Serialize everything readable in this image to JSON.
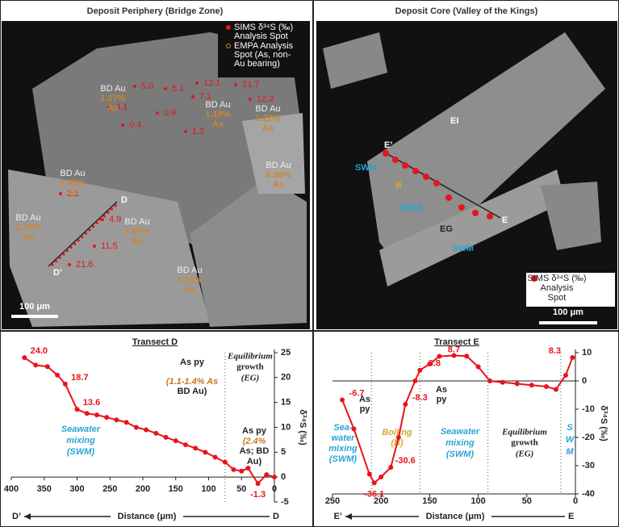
{
  "panels": [
    {
      "title": "Deposit Periphery (Bridge Zone)",
      "legend": [
        "SIMS δ³⁴S (‰)",
        "Analysis Spot",
        "EMPA Analysis",
        "Spot (As, non-",
        "Au bearing)"
      ],
      "sims_labels": [
        "5.0",
        "5.1",
        "12.1",
        "21.7",
        "4.1",
        "7.1",
        "0.9",
        "12.2",
        "0.4",
        "1.2",
        "2.1",
        "4.9",
        "11.5",
        "21.6"
      ],
      "empa_labels": [
        [
          "BD Au",
          "1.27%",
          "As"
        ],
        [
          "BD Au",
          "1.19%",
          "As"
        ],
        [
          "BD Au",
          "1.22%",
          "As"
        ],
        [
          "BD Au",
          "0.26%",
          "As"
        ],
        [
          "BD Au",
          "2.42%",
          "As"
        ],
        [
          "BD Au",
          "1.37%",
          "As"
        ],
        [
          "BD Au",
          "1.07%",
          "As"
        ],
        [
          "BD Au",
          "1.21%",
          "As"
        ]
      ],
      "markers": [
        "D",
        "D’"
      ],
      "scale": "100 μm"
    },
    {
      "title": "Deposit Core (Valley of the Kings)",
      "labels": [
        "EI",
        "E’",
        "E",
        "SWM",
        "B",
        "SWM",
        "EG",
        "SWM"
      ],
      "legend": [
        "SIMS δ³⁴S (‰)",
        "Analysis",
        "Spot"
      ],
      "scale": "100 μm"
    }
  ],
  "chart_data": [
    {
      "type": "line",
      "title": "Transect D",
      "x_label": "Distance (μm)",
      "y_label": "δ³⁴S (‰)",
      "start_label": "D’",
      "end_label": "D",
      "x": [
        380,
        363,
        345,
        330,
        318,
        300,
        285,
        270,
        255,
        240,
        225,
        210,
        195,
        180,
        165,
        150,
        135,
        120,
        105,
        90,
        75,
        62,
        50,
        40,
        25,
        12,
        0
      ],
      "series": [
        {
          "name": "δ³⁴S",
          "color": "#e8141c",
          "values": [
            24.0,
            22.5,
            22.2,
            20.5,
            18.7,
            13.6,
            12.8,
            12.5,
            12.0,
            11.5,
            11.0,
            10.0,
            9.5,
            8.8,
            8.0,
            7.3,
            6.5,
            5.8,
            5.0,
            4.0,
            3.0,
            1.5,
            1.2,
            1.8,
            -1.3,
            0.5,
            0
          ],
          "value_labels": [
            "24.0",
            null,
            null,
            null,
            "18.7",
            "13.6",
            null,
            null,
            null,
            null,
            null,
            null,
            null,
            null,
            null,
            null,
            null,
            null,
            null,
            null,
            null,
            null,
            null,
            null,
            "-1.3",
            null,
            null
          ]
        }
      ],
      "xlim": [
        400,
        0
      ],
      "xticks": [
        400,
        350,
        300,
        250,
        200,
        150,
        100,
        50,
        0
      ],
      "ylim": [
        -5,
        25
      ],
      "yticks": [
        25,
        20,
        15,
        10,
        5,
        0,
        -5
      ],
      "annotations": [
        [
          "As py",
          "#222"
        ],
        [
          "(1.1-1.4% As",
          "#c8781e"
        ],
        [
          "BD Au)",
          "#222"
        ],
        [
          "Equilibrium",
          "#222"
        ],
        [
          "growth",
          "#222"
        ],
        [
          "(EG)",
          "#222"
        ],
        [
          "As py",
          "#222"
        ],
        [
          "(2.4%",
          "#c8781e"
        ],
        [
          "As; BD",
          "#222"
        ],
        [
          "Au)",
          "#222"
        ],
        [
          "Seawater",
          "#29a3d6"
        ],
        [
          "mixing",
          "#29a3d6"
        ],
        [
          "(SWM)",
          "#29a3d6"
        ]
      ]
    },
    {
      "type": "line",
      "title": "Transect E",
      "x_label": "Distance (μm)",
      "y_label": "δ³⁴S (‰)",
      "start_label": "E’",
      "end_label": "E",
      "x": [
        240,
        228,
        212,
        207,
        200,
        190,
        182,
        175,
        165,
        160,
        150,
        140,
        125,
        112,
        100,
        88,
        75,
        60,
        45,
        30,
        20,
        10,
        3
      ],
      "series": [
        {
          "name": "δ³⁴S",
          "color": "#e8141c",
          "values": [
            -6.7,
            -17,
            -33,
            -36.1,
            -34,
            -30.6,
            -20,
            -8.3,
            0,
            3.8,
            6,
            8.7,
            9,
            8.8,
            5,
            0,
            -0.5,
            -1,
            -1.5,
            -2,
            -3,
            2,
            8.3
          ],
          "value_labels": [
            "-6.7",
            null,
            null,
            "-36.1",
            null,
            "-30.6",
            null,
            "-8.3",
            null,
            "3.8",
            null,
            "8.7",
            null,
            null,
            null,
            null,
            null,
            null,
            null,
            null,
            null,
            null,
            "8.3"
          ]
        }
      ],
      "xlim": [
        250,
        0
      ],
      "xticks": [
        250,
        200,
        150,
        100,
        50,
        0
      ],
      "ylim": [
        -40,
        10
      ],
      "yticks": [
        10,
        0,
        -10,
        -20,
        -30,
        -40
      ],
      "annotations": [
        [
          "As",
          "#222"
        ],
        [
          "py",
          "#222"
        ],
        [
          "As",
          "#222"
        ],
        [
          "py",
          "#222"
        ],
        [
          "Sea-",
          "#29a3d6"
        ],
        [
          "water",
          "#29a3d6"
        ],
        [
          "mixing",
          "#29a3d6"
        ],
        [
          "(SWM)",
          "#29a3d6"
        ],
        [
          "Boiling",
          "#d9a52a"
        ],
        [
          "(B)",
          "#d9a52a"
        ],
        [
          "Seawater",
          "#29a3d6"
        ],
        [
          "mixing",
          "#29a3d6"
        ],
        [
          "(SWM)",
          "#29a3d6"
        ],
        [
          "Equilibrium",
          "#222"
        ],
        [
          "growth",
          "#222"
        ],
        [
          "(EG)",
          "#222"
        ],
        [
          "S",
          "#29a3d6"
        ],
        [
          "W",
          "#29a3d6"
        ],
        [
          "M",
          "#29a3d6"
        ]
      ]
    }
  ]
}
